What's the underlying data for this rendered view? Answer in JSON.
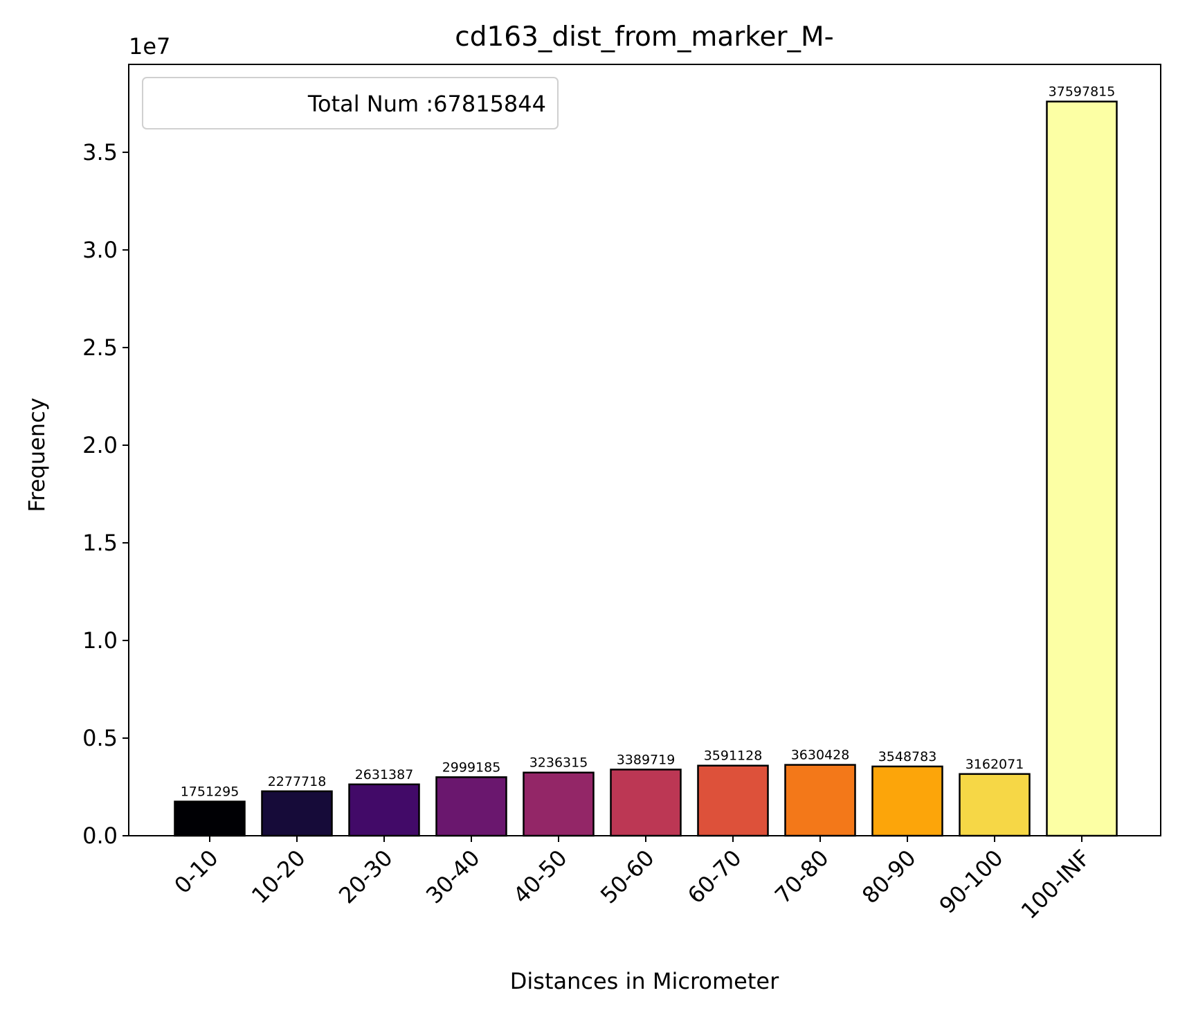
{
  "chart_data": {
    "type": "bar",
    "title": "cd163_dist_from_marker_M-",
    "xlabel": "Distances in Micrometer",
    "ylabel": "Frequency",
    "y_offset_label": "1e7",
    "ylim": [
      0,
      39500000
    ],
    "yticks": [
      0,
      5000000,
      10000000,
      15000000,
      20000000,
      25000000,
      30000000,
      35000000
    ],
    "ytick_labels": [
      "0.0",
      "0.5",
      "1.0",
      "1.5",
      "2.0",
      "2.5",
      "3.0",
      "3.5"
    ],
    "categories": [
      "0-10",
      "10-20",
      "20-30",
      "30-40",
      "40-50",
      "50-60",
      "60-70",
      "70-80",
      "80-90",
      "90-100",
      "100-INF"
    ],
    "values": [
      1751295,
      2277718,
      2631387,
      2999185,
      3236315,
      3389719,
      3591128,
      3630428,
      3548783,
      3162071,
      37597815
    ],
    "data_labels": [
      "1751295",
      "2277718",
      "2631387",
      "2999185",
      "3236315",
      "3389719",
      "3591128",
      "3630428",
      "3548783",
      "3162071",
      "37597815"
    ],
    "colors": [
      "#000004",
      "#160b39",
      "#420a68",
      "#6a176e",
      "#932667",
      "#bc3754",
      "#dd513a",
      "#f37819",
      "#fca50a",
      "#f6d746",
      "#fcffa4"
    ],
    "legend": {
      "text": "Total Num :67815844",
      "location": "upper-left"
    },
    "grid": false
  }
}
